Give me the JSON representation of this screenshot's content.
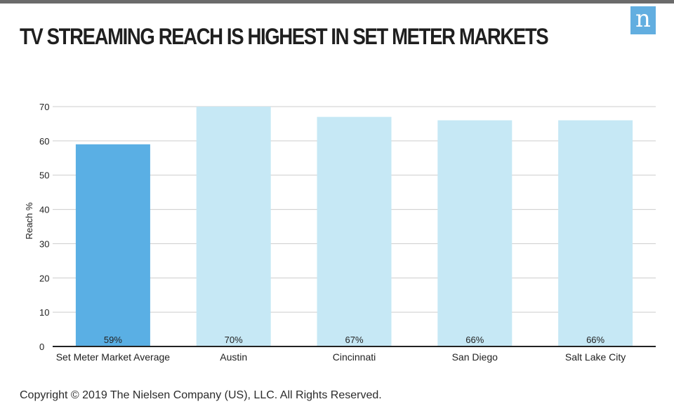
{
  "header": {
    "title": "TV STREAMING REACH IS HIGHEST IN SET METER MARKETS",
    "logo_letter": "n"
  },
  "footer": {
    "copyright": "Copyright © 2019 The Nielsen Company (US), LLC. All Rights Reserved."
  },
  "colors": {
    "highlight_bar": "#5aafe4",
    "standard_bar": "#c6e8f5",
    "gridline": "#cccccc",
    "axis": "#222222",
    "logo_bg": "#62aee0"
  },
  "chart_data": {
    "type": "bar",
    "title": "TV STREAMING REACH IS HIGHEST IN SET METER MARKETS",
    "xlabel": "",
    "ylabel": "Reach %",
    "ylim": [
      0,
      70
    ],
    "yticks": [
      0,
      10,
      20,
      30,
      40,
      50,
      60,
      70
    ],
    "grid": true,
    "legend": "none",
    "categories": [
      "Set Meter Market Average",
      "Austin",
      "Cincinnati",
      "San Diego",
      "Salt Lake City"
    ],
    "values": [
      59,
      70,
      67,
      66,
      66
    ],
    "data_labels": [
      "59%",
      "70%",
      "67%",
      "66%",
      "66%"
    ],
    "highlight_index": 0
  }
}
